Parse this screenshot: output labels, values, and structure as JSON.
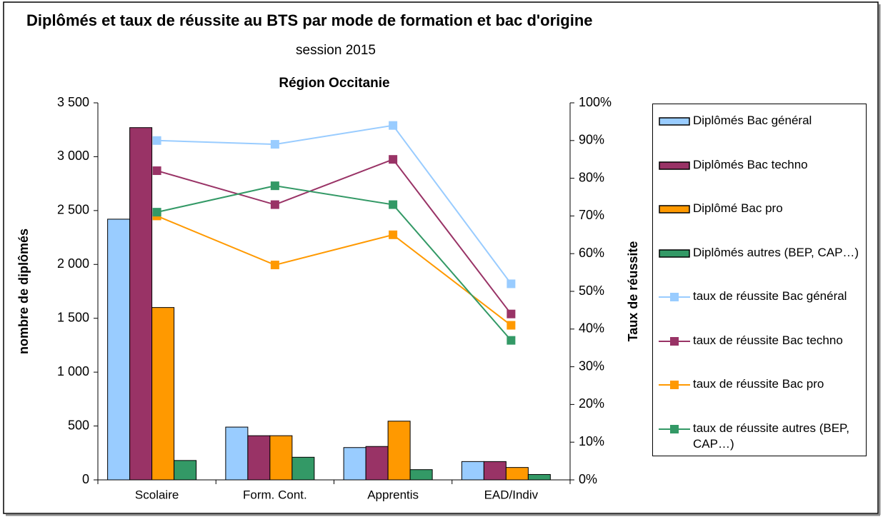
{
  "chart_data": {
    "type": "bar",
    "title": "Diplômés et taux de réussite au BTS  par mode de formation et bac d'origine",
    "subtitle": "session  2015",
    "region": "Région Occitanie",
    "y_label": "nombre de diplômés",
    "y2_label": "Taux de réussite",
    "categories": [
      "Scolaire",
      "Form. Cont.",
      "Apprentis",
      "EAD/Indiv"
    ],
    "ylim": [
      0,
      3500
    ],
    "yticks": [
      0,
      500,
      {
        "value": 1000,
        "label": "1 000"
      },
      {
        "value": 1500,
        "label": "1 500"
      },
      {
        "value": 2000,
        "label": "2 000"
      },
      {
        "value": 2500,
        "label": "2 500"
      },
      {
        "value": 3000,
        "label": "3 000"
      },
      {
        "value": 3500,
        "label": "3 500"
      }
    ],
    "y2lim": [
      0,
      100
    ],
    "y2ticks": [
      {
        "value": 0,
        "label": "0%"
      },
      {
        "value": 10,
        "label": "10%"
      },
      {
        "value": 20,
        "label": "20%"
      },
      {
        "value": 30,
        "label": "30%"
      },
      {
        "value": 40,
        "label": "40%"
      },
      {
        "value": 50,
        "label": "50%"
      },
      {
        "value": 60,
        "label": "60%"
      },
      {
        "value": 70,
        "label": "70%"
      },
      {
        "value": 80,
        "label": "80%"
      },
      {
        "value": 90,
        "label": "90%"
      },
      {
        "value": 100,
        "label": "100%"
      }
    ],
    "series": [
      {
        "name": "Diplômés Bac général",
        "kind": "bar",
        "color": "#99ccff",
        "values": [
          2420,
          490,
          300,
          170
        ]
      },
      {
        "name": "Diplômés Bac techno",
        "kind": "bar",
        "color": "#993366",
        "values": [
          3270,
          410,
          310,
          170
        ]
      },
      {
        "name": "Diplômé Bac pro",
        "kind": "bar",
        "color": "#ff9900",
        "values": [
          1600,
          410,
          545,
          115
        ]
      },
      {
        "name": "Diplômés autres (BEP, CAP…)",
        "kind": "bar",
        "color": "#339966",
        "values": [
          180,
          210,
          95,
          50
        ]
      },
      {
        "name": "taux de réussite Bac général",
        "kind": "line",
        "axis": "y2",
        "color": "#99ccff",
        "values": [
          90,
          89,
          94,
          52
        ]
      },
      {
        "name": "taux de réussite Bac techno",
        "kind": "line",
        "axis": "y2",
        "color": "#993366",
        "values": [
          82,
          73,
          85,
          44
        ]
      },
      {
        "name": "taux de réussite Bac pro",
        "kind": "line",
        "axis": "y2",
        "color": "#ff9900",
        "values": [
          70,
          57,
          65,
          41
        ]
      },
      {
        "name": "taux de réussite autres (BEP, CAP…)",
        "kind": "line",
        "axis": "y2",
        "color": "#339966",
        "values": [
          71,
          78,
          73,
          37
        ]
      }
    ]
  }
}
